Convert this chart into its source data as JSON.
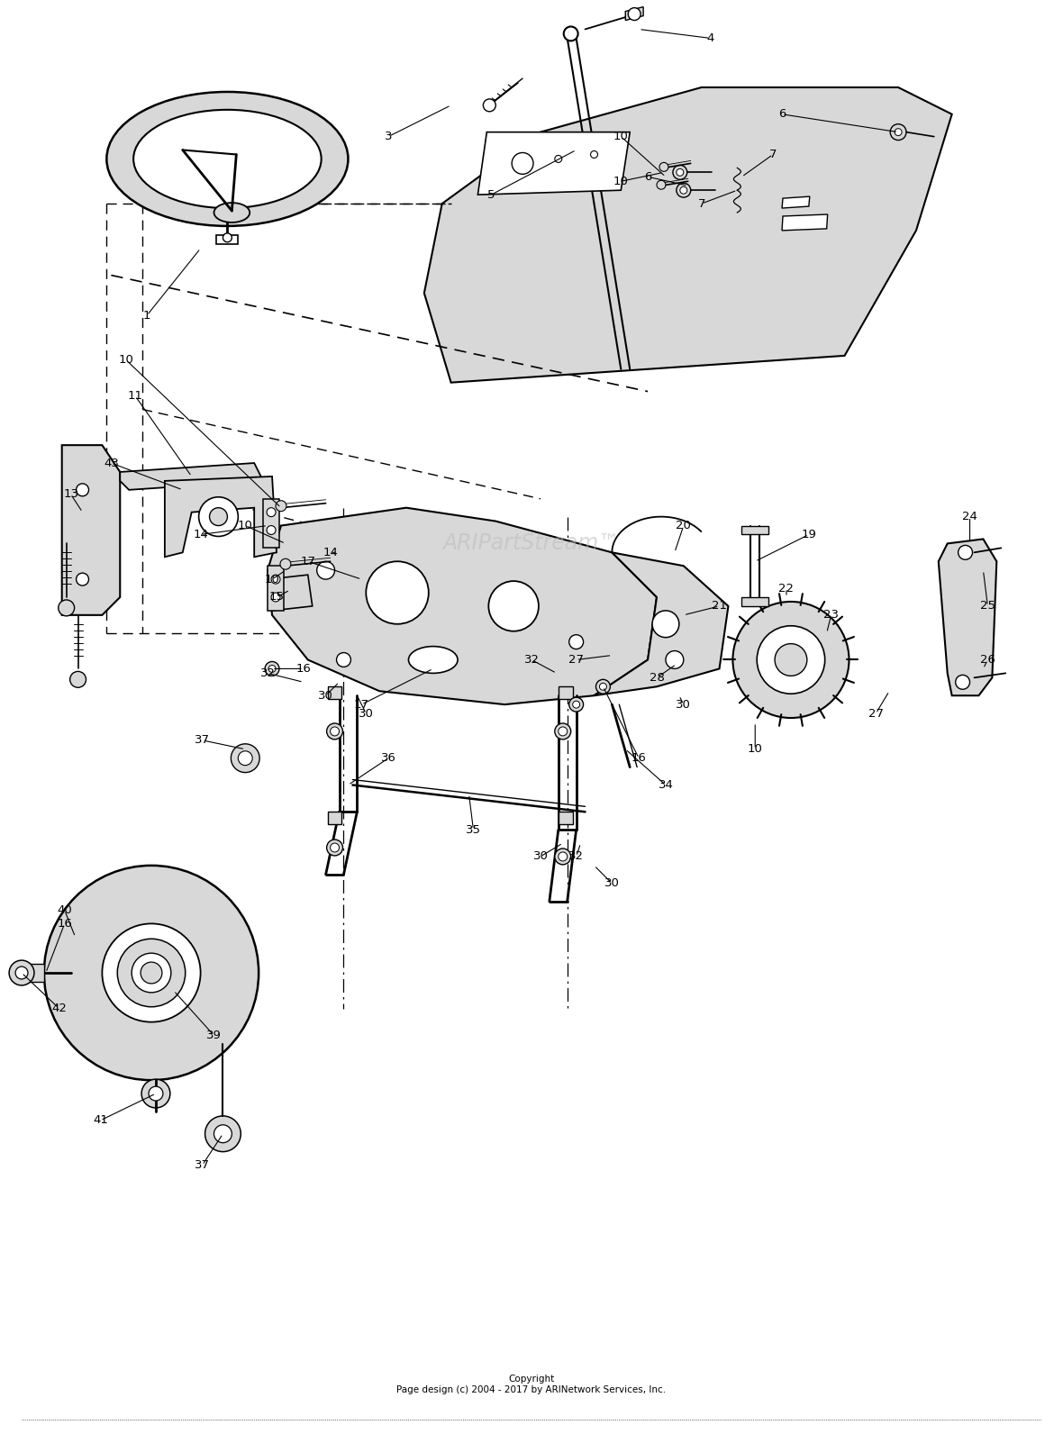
{
  "bg_color": "#ffffff",
  "stipple_color": "#d8d8d8",
  "line_color": "#000000",
  "copyright": "Copyright\nPage design (c) 2004 - 2017 by ARINetwork Services, Inc.",
  "watermark": "ARIPartStream™",
  "fig_width": 11.8,
  "fig_height": 16.02,
  "dpi": 100
}
